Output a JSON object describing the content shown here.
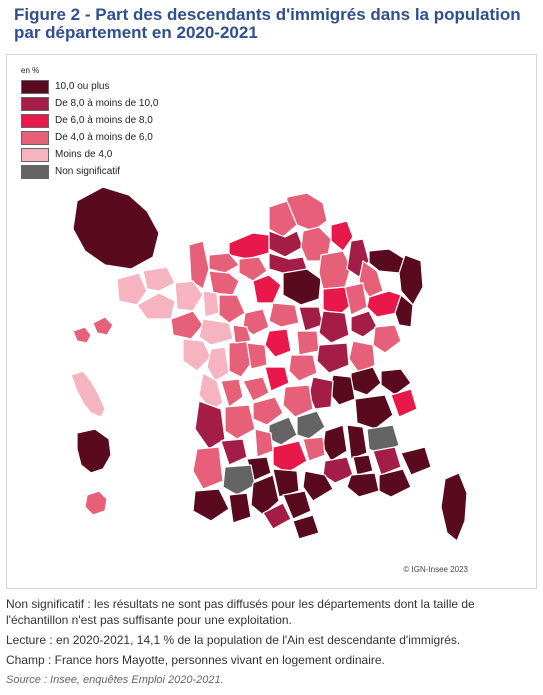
{
  "title": "Figure 2 - Part des descendants d'immigrés dans la population par département en 2020-2021",
  "legend": {
    "unit": "en %",
    "items": [
      {
        "label": "10,0 ou plus",
        "color": "#5a0a1e"
      },
      {
        "label": "De 8,0 à moins de 10,0",
        "color": "#a31d47"
      },
      {
        "label": "De 6,0 à moins de 8,0",
        "color": "#e8194a"
      },
      {
        "label": "De 4,0 à moins de 6,0",
        "color": "#e6607a"
      },
      {
        "label": "Moins de 4,0",
        "color": "#f5b4bf"
      },
      {
        "label": "Non significatif",
        "color": "#646464"
      }
    ]
  },
  "copyright": "© IGN-Insee 2023",
  "notes": {
    "non_significatif": "Non significatif : les résultats ne sont pas diffusés pour les départements dont la taille de l'échantillon n'est pas suffisante pour une exploitation.",
    "lecture": "Lecture : en 2020-2021, 14,1 % de la population de l'Ain est descendante d'immigrés.",
    "champ": "Champ : France hors Mayotte, personnes vivant en logement ordinaire.",
    "source": "Source : Insee, enquêtes Emploi 2020-2021."
  }
}
